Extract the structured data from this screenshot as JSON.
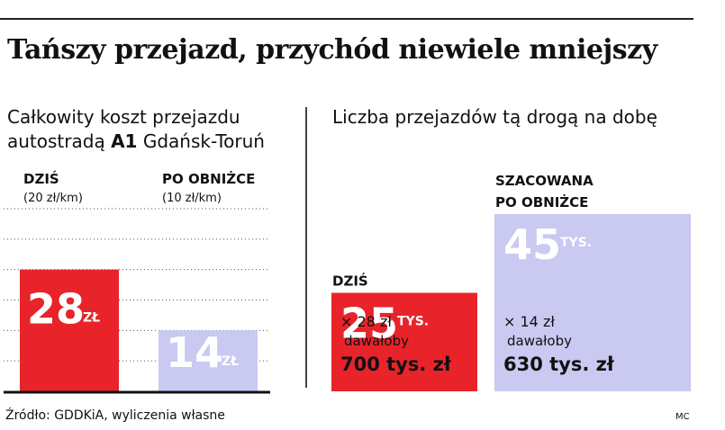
{
  "title": "Tańszy przejazd, przychód niewiele mniejszy",
  "left_panel": {
    "subtitle_line1": "Całkowity koszt przejazdu",
    "subtitle_line2_prefix": "autostradą ",
    "subtitle_line2_road": "A1",
    "subtitle_line2_suffix": " Gdańsk-Toruń"
  },
  "right_panel": {
    "subtitle": "Liczba przejazdów tą drogą na dobę"
  },
  "chart_data": [
    {
      "type": "bar",
      "title": "Całkowity koszt przejazdu autostradą A1 Gdańsk-Toruń",
      "categories": [
        "DZIŚ",
        "PO OBNIŻCE"
      ],
      "category_notes": [
        "(20 zł/km)",
        "(10 zł/km)"
      ],
      "values": [
        28,
        14
      ],
      "value_labels": [
        "28",
        "14"
      ],
      "unit": "ZŁ",
      "ylim": [
        0,
        42
      ],
      "grid": true,
      "colors": [
        "#e8232a",
        "#c9c9f2"
      ]
    },
    {
      "type": "bar",
      "title": "Liczba przejazdów tą drogą na dobę",
      "categories": [
        "DZIŚ",
        "SZACOWANA PO OBNIŻCE"
      ],
      "category_lines": [
        [
          "DZIŚ"
        ],
        [
          "SZACOWANA",
          "PO OBNIŻCE"
        ]
      ],
      "values": [
        25,
        45
      ],
      "value_labels": [
        "25",
        "45"
      ],
      "unit": "TYS.",
      "ylim": [
        0,
        50
      ],
      "grid": false,
      "colors": [
        "#e8232a",
        "#c9c9f2"
      ],
      "annotations": [
        {
          "line1": "× 28 zł",
          "line2": "dawałoby",
          "total": "700 tys. zł"
        },
        {
          "line1": "× 14 zł",
          "line2": "dawałoby",
          "total": "630 tys. zł"
        }
      ]
    }
  ],
  "source": "Źródło: GDDKiA, wyliczenia własne",
  "credit": "MC"
}
